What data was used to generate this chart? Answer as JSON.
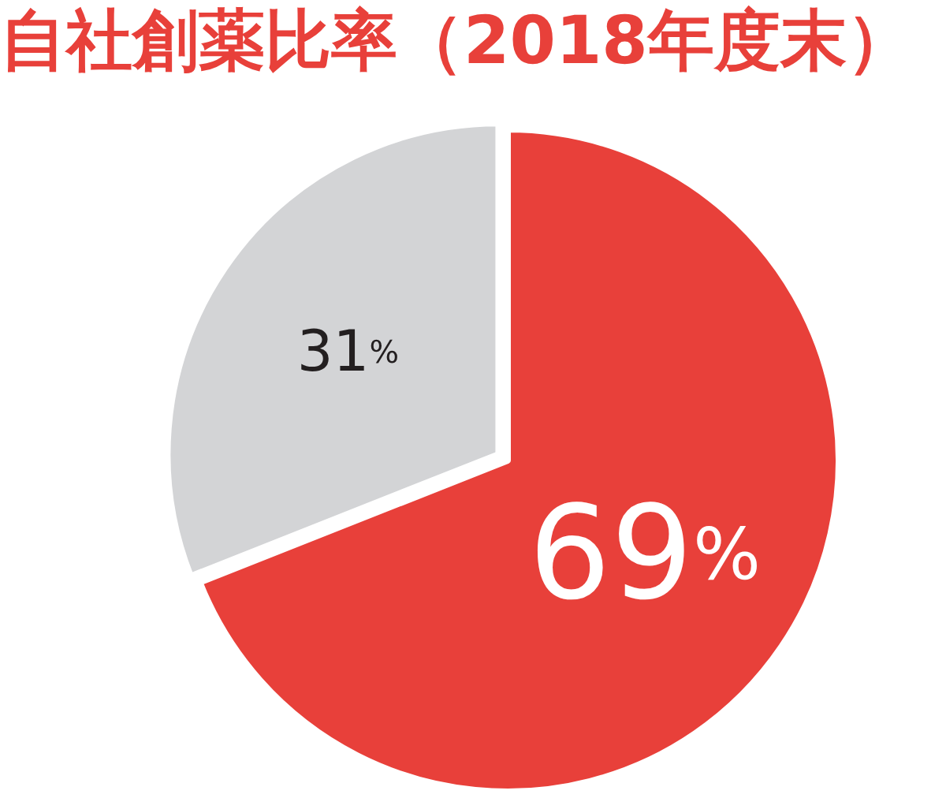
{
  "chart_data": {
    "type": "pie",
    "title": "自社創薬比率（2018年度末）",
    "categories": [
      null,
      null
    ],
    "values": [
      69,
      31
    ],
    "colors": [
      "#e8403a",
      "#d3d4d6"
    ],
    "value_labels": [
      "69%",
      "31%"
    ]
  }
}
